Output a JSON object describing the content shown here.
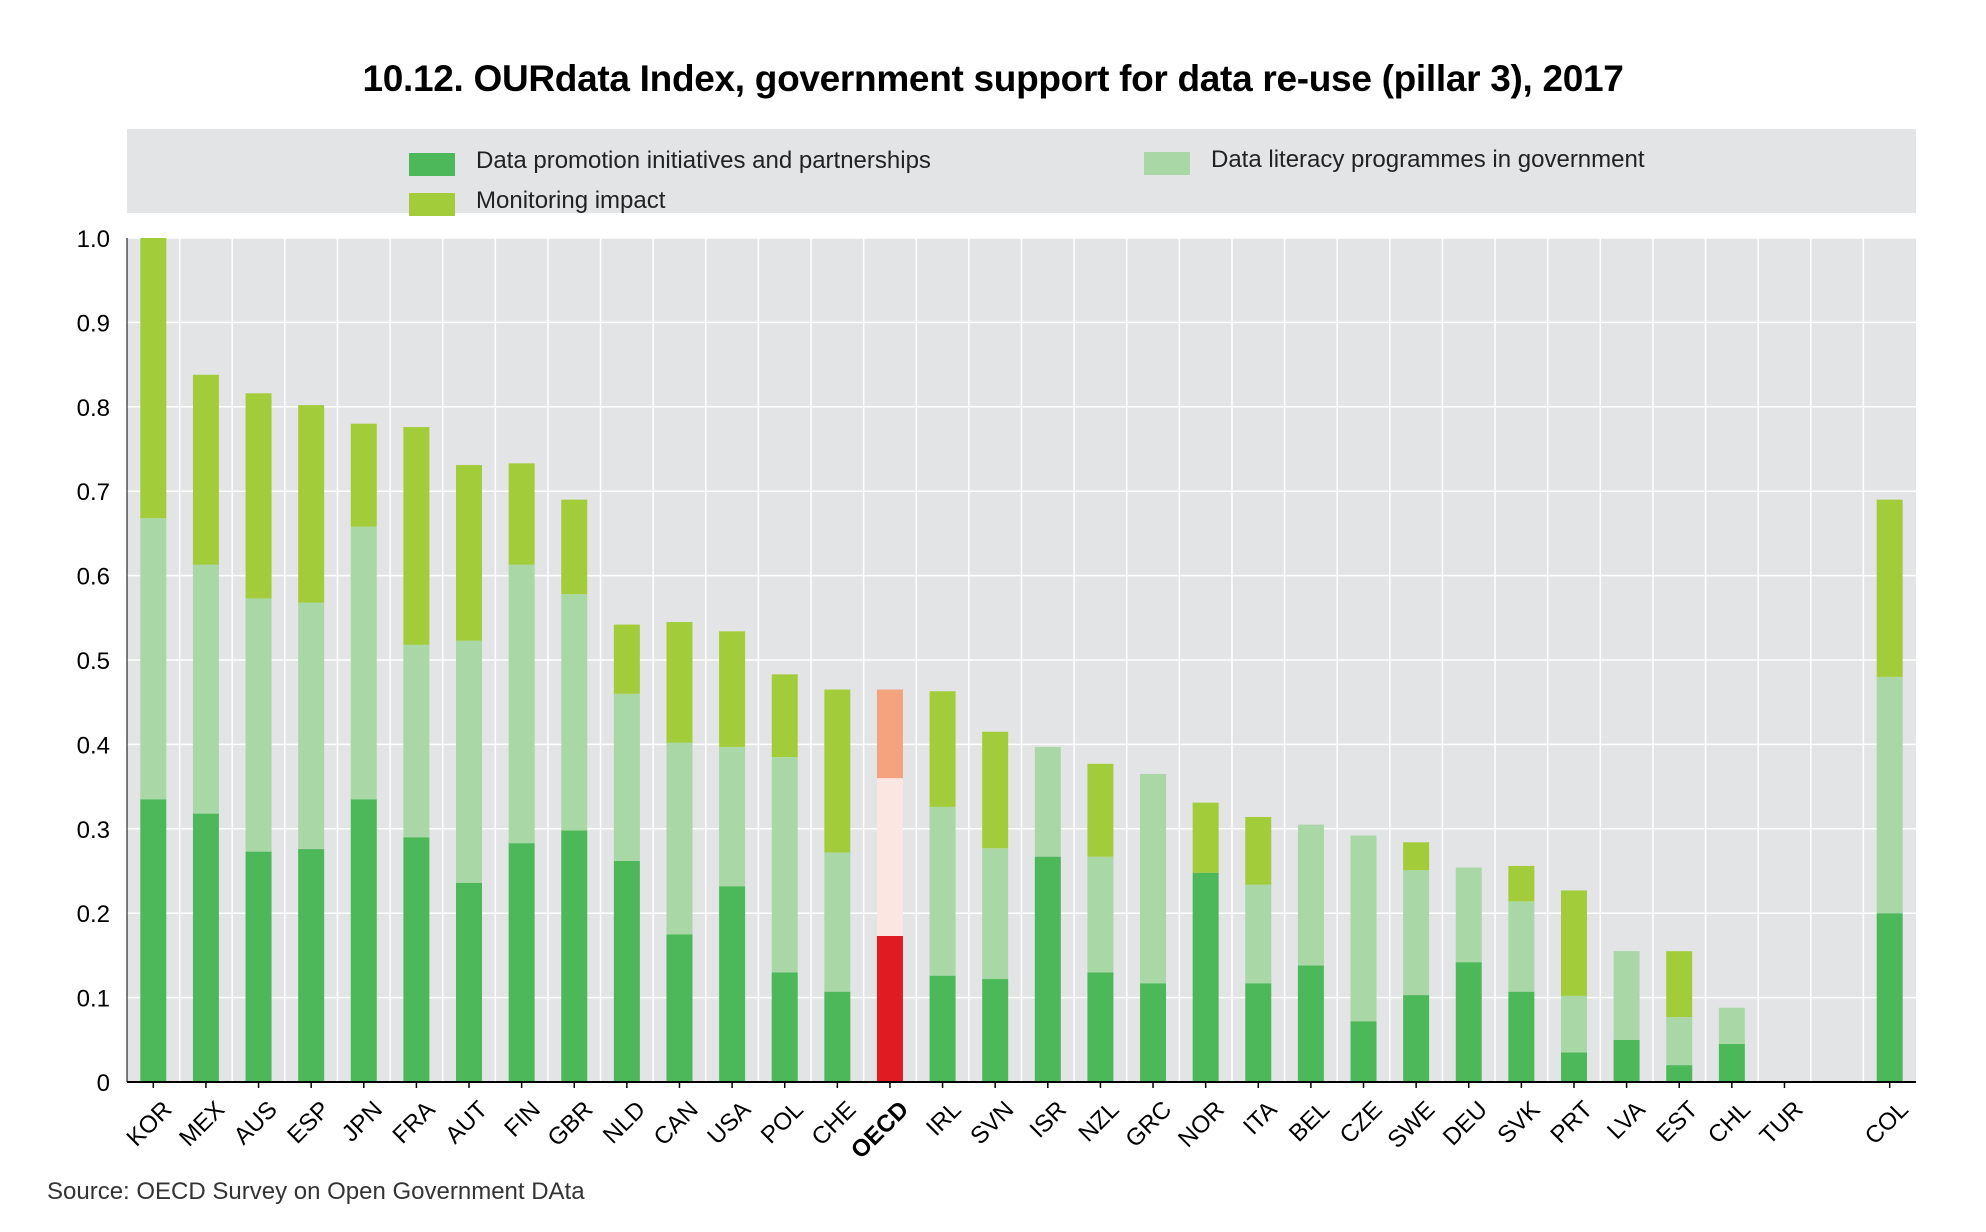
{
  "chart_data": {
    "type": "bar",
    "stacked": true,
    "title": "10.12. OURdata Index, government support for data re-use (pillar 3), 2017",
    "xlabel": "",
    "ylabel": "",
    "ylim": [
      0,
      1.0
    ],
    "yticks": [
      "0",
      "0.1",
      "0.2",
      "0.3",
      "0.4",
      "0.5",
      "0.6",
      "0.7",
      "0.8",
      "0.9",
      "1.0"
    ],
    "grid": true,
    "legend_position": "top",
    "categories": [
      "KOR",
      "MEX",
      "AUS",
      "ESP",
      "JPN",
      "FRA",
      "AUT",
      "FIN",
      "GBR",
      "NLD",
      "CAN",
      "USA",
      "POL",
      "CHE",
      "OECD",
      "IRL",
      "SVN",
      "ISR",
      "NZL",
      "GRC",
      "NOR",
      "ITA",
      "BEL",
      "CZE",
      "SWE",
      "DEU",
      "SVK",
      "PRT",
      "LVA",
      "EST",
      "CHL",
      "TUR",
      "COL"
    ],
    "highlight_category": "OECD",
    "series": [
      {
        "name": "Data promotion initiatives and partnerships",
        "color": "#4db85a",
        "highlight_color": "#e11b22",
        "values": [
          0.335,
          0.318,
          0.273,
          0.276,
          0.335,
          0.29,
          0.236,
          0.283,
          0.298,
          0.262,
          0.175,
          0.232,
          0.13,
          0.107,
          0.173,
          0.126,
          0.122,
          0.267,
          0.13,
          0.117,
          0.248,
          0.117,
          0.138,
          0.072,
          0.103,
          0.142,
          0.107,
          0.035,
          0.05,
          0.02,
          0.045,
          0,
          0.2
        ]
      },
      {
        "name": "Data literacy programmes in government",
        "color": "#a9d7a5",
        "highlight_color": "#fbe6e1",
        "values": [
          0.333,
          0.295,
          0.3,
          0.292,
          0.323,
          0.228,
          0.287,
          0.33,
          0.28,
          0.198,
          0.227,
          0.165,
          0.255,
          0.165,
          0.187,
          0.2,
          0.155,
          0.13,
          0.137,
          0.248,
          0,
          0.117,
          0.167,
          0.22,
          0.148,
          0.112,
          0.107,
          0.067,
          0.105,
          0.057,
          0.043,
          0,
          0.28
        ]
      },
      {
        "name": "Monitoring impact",
        "color": "#a3cc3a",
        "highlight_color": "#f5a27e",
        "values": [
          0.332,
          0.225,
          0.243,
          0.234,
          0.122,
          0.258,
          0.208,
          0.12,
          0.112,
          0.082,
          0.143,
          0.137,
          0.098,
          0.193,
          0.105,
          0.137,
          0.138,
          0,
          0.11,
          0,
          0.083,
          0.08,
          0,
          0,
          0.033,
          0,
          0.042,
          0.125,
          0,
          0.078,
          0,
          0,
          0.21
        ]
      }
    ]
  },
  "legend": {
    "item1": "Data promotion initiatives and partnerships",
    "item2": "Data literacy programmes in government",
    "item3": "Monitoring impact"
  },
  "source": "Source: OECD Survey on Open Government DAta"
}
